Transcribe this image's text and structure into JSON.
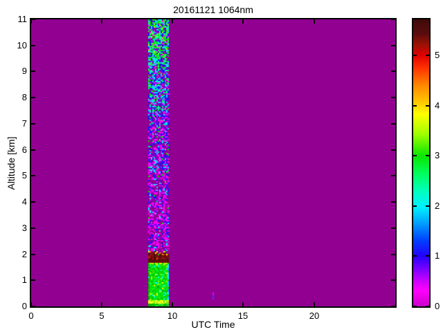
{
  "figure": {
    "background_color": "#ffffff",
    "text_color": "#000000",
    "axis_color": "#000000"
  },
  "chart_data": {
    "type": "heatmap",
    "title": "20161121 1064nm",
    "xlabel": "UTC Time",
    "ylabel": "Altitude [km]",
    "xlim": [
      0,
      25.75
    ],
    "ylim": [
      0,
      11
    ],
    "x_ticks": [
      0,
      5,
      10,
      15,
      20
    ],
    "y_ticks": [
      0,
      1,
      2,
      3,
      4,
      5,
      6,
      7,
      8,
      9,
      10,
      11
    ],
    "grid": false,
    "background_value": 0,
    "background_color": "#920092",
    "colorbar": {
      "min": 0,
      "max": 5.72,
      "ticks": [
        0,
        1,
        2,
        3,
        4,
        5
      ],
      "gradient_top_to_bottom": [
        {
          "pos": "0%",
          "color": "#3f0a0a"
        },
        {
          "pos": "5%",
          "color": "#5a0d0d"
        },
        {
          "pos": "9%",
          "color": "#9e1205"
        },
        {
          "pos": "12.5%",
          "color": "#e00000"
        },
        {
          "pos": "17%",
          "color": "#ff3300"
        },
        {
          "pos": "23%",
          "color": "#ff8800"
        },
        {
          "pos": "29%",
          "color": "#ffc800"
        },
        {
          "pos": "33%",
          "color": "#ffff00"
        },
        {
          "pos": "40%",
          "color": "#a0ff00"
        },
        {
          "pos": "47.5%",
          "color": "#0ae600"
        },
        {
          "pos": "54%",
          "color": "#00ff60"
        },
        {
          "pos": "60%",
          "color": "#00ffc0"
        },
        {
          "pos": "65.5%",
          "color": "#00f0ff"
        },
        {
          "pos": "71%",
          "color": "#00a0ff"
        },
        {
          "pos": "77%",
          "color": "#0040ff"
        },
        {
          "pos": "82.5%",
          "color": "#2400ff"
        },
        {
          "pos": "87%",
          "color": "#7a00ff"
        },
        {
          "pos": "91%",
          "color": "#c800ff"
        },
        {
          "pos": "94.5%",
          "color": "#ff00ff"
        },
        {
          "pos": "100%",
          "color": "#c800c8"
        }
      ]
    },
    "stripe": {
      "utc_range": [
        8.28,
        9.69
      ],
      "description": "single lidar measurement column ~08:20-09:40 UTC; noise speckle aloft, cloud layer near 2 km, strong aerosol return below 1.6 km",
      "bands": [
        {
          "type": "speckle",
          "alt_range": [
            9.27,
            11.0
          ],
          "desc": "dense noise: green/cyan/blue",
          "palette": [
            [
              "#00e600",
              0.2
            ],
            [
              "#33ff33",
              0.1
            ],
            [
              "#00ff80",
              0.08
            ],
            [
              "#00e5ff",
              0.17
            ],
            [
              "#1414ff",
              0.15
            ],
            [
              "#ff00ff",
              0.07
            ],
            [
              "#7a00e6",
              0.05
            ],
            [
              "#b3ff00",
              0.04
            ],
            [
              "",
              0.14
            ]
          ]
        },
        {
          "type": "speckle",
          "alt_range": [
            7.48,
            9.27
          ],
          "desc": "noise: blue/cyan with magenta",
          "palette": [
            [
              "#00e600",
              0.09
            ],
            [
              "#00ff80",
              0.06
            ],
            [
              "#00e5ff",
              0.19
            ],
            [
              "#1414ff",
              0.23
            ],
            [
              "#ff00ff",
              0.14
            ],
            [
              "#7a00e6",
              0.06
            ],
            [
              "",
              0.23
            ]
          ]
        },
        {
          "type": "speckle",
          "alt_range": [
            5.17,
            7.48
          ],
          "desc": "noise: magenta/blue",
          "palette": [
            [
              "#1414ff",
              0.21
            ],
            [
              "#00e5ff",
              0.12
            ],
            [
              "#ff00ff",
              0.25
            ],
            [
              "#7a00e6",
              0.09
            ],
            [
              "#00e600",
              0.04
            ],
            [
              "",
              0.29
            ]
          ]
        },
        {
          "type": "speckle",
          "alt_range": [
            2.97,
            5.17
          ],
          "desc": "sparse magenta noise",
          "palette": [
            [
              "#ff00ff",
              0.32
            ],
            [
              "#1414ff",
              0.12
            ],
            [
              "#00e5ff",
              0.06
            ],
            [
              "#7a00e6",
              0.08
            ],
            [
              "#00e600",
              0.02
            ],
            [
              "",
              0.4
            ]
          ]
        },
        {
          "type": "speckle",
          "alt_range": [
            2.13,
            2.97
          ],
          "desc": "very sparse magenta noise above cloud",
          "palette": [
            [
              "#ff00ff",
              0.3
            ],
            [
              "#1414ff",
              0.1
            ],
            [
              "#00e5ff",
              0.05
            ],
            [
              "#7a00e6",
              0.05
            ],
            [
              "",
              0.5
            ]
          ]
        },
        {
          "type": "cloud",
          "alt_range": [
            1.61,
            2.13
          ],
          "desc": "optically thick cloud layer (value >5)",
          "base": "#5a0c0c",
          "speck_palette": [
            [
              "#701010",
              0.3
            ],
            [
              "#a31212",
              0.1
            ],
            [
              "#d42a00",
              0.05
            ],
            [
              "#ff5500",
              0.03
            ],
            [
              "",
              0.52
            ]
          ],
          "top_edge_palette": [
            [
              "#ffff00",
              0.2
            ],
            [
              "#ff8800",
              0.2
            ],
            [
              "#cc2200",
              0.2
            ],
            [
              "#22cc00",
              0.15
            ],
            [
              "#7a1212",
              0.25
            ]
          ],
          "bottom_edge_palette": [
            [
              "#ffe000",
              0.3
            ],
            [
              "#a0ff00",
              0.3
            ],
            [
              "#00dd00",
              0.4
            ]
          ]
        },
        {
          "type": "column",
          "alt_range": [
            0.24,
            1.61
          ],
          "desc": "strong green return (~3) below cloud",
          "palette": [
            [
              "#00dd00",
              0.42
            ],
            [
              "#00f23c",
              0.18
            ],
            [
              "#2ee600",
              0.15
            ],
            [
              "#00bb00",
              0.13
            ],
            [
              "#aaff00",
              0.05
            ],
            [
              "#00ffff",
              0.04
            ],
            [
              "#ffff00",
              0.03
            ]
          ],
          "right_edge_palette": [
            [
              "#00ffff",
              0.45
            ],
            [
              "#00aaff",
              0.3
            ],
            [
              "#00dd00",
              0.25
            ]
          ],
          "left_edge_color": "#00aa00"
        },
        {
          "type": "band",
          "alt_range": [
            0.105,
            0.24
          ],
          "desc": "bright near-surface yellow-green line",
          "palette": [
            [
              "#eeff00",
              0.35
            ],
            [
              "#ffff33",
              0.25
            ],
            [
              "#aaff00",
              0.2
            ],
            [
              "#66ee00",
              0.2
            ]
          ]
        },
        {
          "type": "band",
          "alt_range": [
            0.015,
            0.105
          ],
          "desc": "green tail at surface",
          "palette": [
            [
              "#00cc00",
              0.6
            ],
            [
              "#00aa00",
              0.25
            ],
            [
              "#33dd33",
              0.15
            ]
          ]
        }
      ]
    },
    "isolated_specks": [
      {
        "utc": 12.85,
        "alt_range": [
          0.26,
          0.52
        ],
        "palette": [
          [
            "#ff00ff",
            0.6
          ],
          [
            "#3333ff",
            0.25
          ],
          [
            "#cc00ff",
            0.15
          ]
        ]
      }
    ]
  }
}
